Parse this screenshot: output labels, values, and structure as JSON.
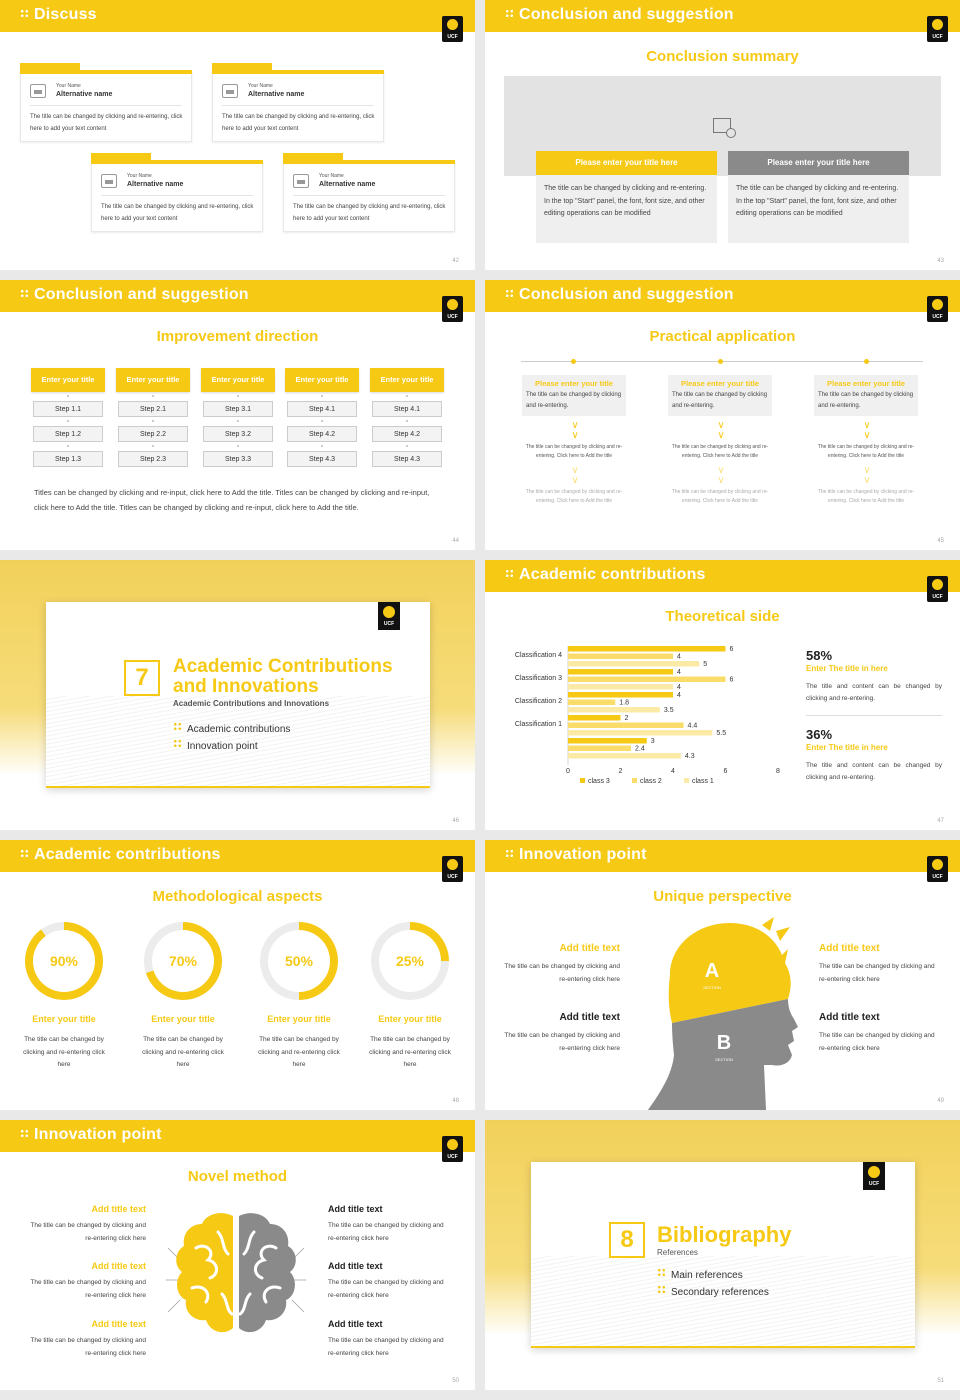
{
  "colors": {
    "accent": "#f6c915",
    "gray": "#8a8a8a",
    "light": "#efefef"
  },
  "icons": [
    "grid-dots-icon",
    "ucf-logo-icon",
    "picture-placeholder-icon",
    "chevron-double-down-icon",
    "head-silhouette-icon",
    "brain-icon"
  ],
  "logo_text": "UCF",
  "s42": {
    "header": "Discuss",
    "page": "42",
    "cards": [
      {
        "your_name": "Your Name",
        "alt": "Alternative name",
        "text": "The title can be changed by clicking and re-entering, click here to add your text content"
      },
      {
        "your_name": "Your Name",
        "alt": "Alternative name",
        "text": "The title can be changed by clicking and re-entering, click here to add your text content"
      },
      {
        "your_name": "Your Name",
        "alt": "Alternative name",
        "text": "The title can be changed by clicking and re-entering, click here to add your text content"
      },
      {
        "your_name": "Your Name",
        "alt": "Alternative name",
        "text": "The title can be changed by clicking and re-entering, click here to add your text content"
      }
    ]
  },
  "s43": {
    "header": "Conclusion and suggestion",
    "title": "Conclusion summary",
    "page": "43",
    "boxes": [
      {
        "title": "Please enter your title here",
        "text": "The title can be changed by clicking and re-entering. In the top \"Start\" panel, the font, font size, and other editing operations can be modified"
      },
      {
        "title": "Please enter your title here",
        "text": "The title can be changed by clicking and re-entering. In the top \"Start\" panel, the font, font size, and other editing operations can be modified"
      }
    ]
  },
  "s44": {
    "header": "Conclusion and suggestion",
    "title": "Improvement direction",
    "page": "44",
    "columns": [
      {
        "head": "Enter your title",
        "steps": [
          "Step 1.1",
          "Step 1.2",
          "Step 1.3"
        ]
      },
      {
        "head": "Enter your title",
        "steps": [
          "Step 2.1",
          "Step 2.2",
          "Step 2.3"
        ]
      },
      {
        "head": "Enter your title",
        "steps": [
          "Step 3.1",
          "Step 3.2",
          "Step 3.3"
        ]
      },
      {
        "head": "Enter your title",
        "steps": [
          "Step 4.1",
          "Step 4.2",
          "Step 4.3"
        ]
      },
      {
        "head": "Enter your title",
        "steps": [
          "Step 4.1",
          "Step 4.2",
          "Step 4.3"
        ]
      }
    ],
    "paragraph": "Titles can be changed by clicking and re-input, click here to Add the title. Titles can be changed by clicking and re-input, click here to Add the title. Titles can be changed by clicking and re-input, click here to Add the title."
  },
  "s45": {
    "header": "Conclusion and suggestion",
    "title": "Practical application",
    "page": "45",
    "columns": [
      {
        "head": "Please enter your title",
        "body": "The title can be changed by clicking and re-entering.",
        "t1": "The title can be changed by clicking and re-entering. Click here to Add the title",
        "t2": "The title can be changed by clicking and re-entering. Click here to Add the title"
      },
      {
        "head": "Please enter your title",
        "body": "The title can be changed by clicking and re-entering.",
        "t1": "The title can be changed by clicking and re-entering. Click here to Add the title",
        "t2": "The title can be changed by clicking and re-entering. Click here to Add the title"
      },
      {
        "head": "Please enter your title",
        "body": "The title can be changed by clicking and re-entering.",
        "t1": "The title can be changed by clicking and re-entering. Click here to Add the title",
        "t2": "The title can be changed by clicking and re-entering. Click here to Add the title"
      }
    ]
  },
  "s46": {
    "number": "7",
    "title1": "Academic Contributions",
    "title2": "and Innovations",
    "subtitle": "Academic Contributions and Innovations",
    "bullets": [
      "Academic contributions",
      "Innovation point"
    ],
    "page": "46"
  },
  "s47": {
    "header": "Academic contributions",
    "title": "Theoretical side",
    "page": "47",
    "stats": [
      {
        "pct": "58%",
        "sub": "Enter The title in here",
        "text": "The title and content can be changed by clicking and re-entering."
      },
      {
        "pct": "36%",
        "sub": "Enter The title in here",
        "text": "The title and content can be changed by clicking and re-entering."
      }
    ]
  },
  "chart_data": {
    "type": "bar",
    "orientation": "horizontal",
    "categories": [
      "Classification 4",
      "Classification 3",
      "Classification 2",
      "Classification 1",
      ""
    ],
    "series": [
      {
        "name": "class 3",
        "values": [
          6,
          4,
          4,
          2,
          3
        ]
      },
      {
        "name": "class 2",
        "values": [
          4,
          6,
          1.8,
          4.4,
          2.4
        ]
      },
      {
        "name": "class 1",
        "values": [
          5,
          4,
          3.5,
          5.5,
          4.3
        ]
      }
    ],
    "xlim": [
      0,
      8
    ],
    "xticks": [
      "0",
      "2",
      "4",
      "6",
      "8"
    ],
    "series_colors": [
      "#f6c915",
      "#f9dc6a",
      "#fbe9a6"
    ],
    "legend": "bottom",
    "grid": false
  },
  "s48": {
    "header": "Academic contributions",
    "title": "Methodological aspects",
    "page": "48",
    "rings": [
      {
        "pct": "90%",
        "value": 90,
        "title": "Enter your title",
        "text": "The title can be changed by clicking and re-entering click here"
      },
      {
        "pct": "70%",
        "value": 70,
        "title": "Enter your title",
        "text": "The title can be changed by clicking and re-entering click here"
      },
      {
        "pct": "50%",
        "value": 50,
        "title": "Enter your title",
        "text": "The title can be changed by clicking and re-entering click here"
      },
      {
        "pct": "25%",
        "value": 25,
        "title": "Enter your title",
        "text": "The title can be changed by clicking and re-entering click here"
      }
    ]
  },
  "s49": {
    "header": "Innovation point",
    "title": "Unique perspective",
    "page": "49",
    "a": "A",
    "a_sub": "SECTION",
    "b": "B",
    "b_sub": "SECTION",
    "items": [
      {
        "title": "Add title text",
        "text": "The title can be changed by clicking and re-entering click here"
      },
      {
        "title": "Add title text",
        "text": "The title can be changed by clicking and re-entering click here"
      },
      {
        "title": "Add title text",
        "text": "The title can be changed by clicking and re-entering click here"
      },
      {
        "title": "Add title text",
        "text": "The title can be changed by clicking and re-entering click here"
      }
    ]
  },
  "s50": {
    "header": "Innovation point",
    "title": "Novel method",
    "page": "50",
    "items": [
      {
        "title": "Add title text",
        "text": "The title can be changed by clicking and re-entering click here"
      },
      {
        "title": "Add title text",
        "text": "The title can be changed by clicking and re-entering click here"
      },
      {
        "title": "Add title text",
        "text": "The title can be changed by clicking and re-entering click here"
      },
      {
        "title": "Add title text",
        "text": "The title can be changed by clicking and re-entering click here"
      },
      {
        "title": "Add title text",
        "text": "The title can be changed by clicking and re-entering click here"
      },
      {
        "title": "Add title text",
        "text": "The title can be changed by clicking and re-entering click here"
      }
    ]
  },
  "s51": {
    "number": "8",
    "title": "Bibliography",
    "subtitle": "References",
    "bullets": [
      "Main references",
      "Secondary references"
    ],
    "page": "51"
  }
}
